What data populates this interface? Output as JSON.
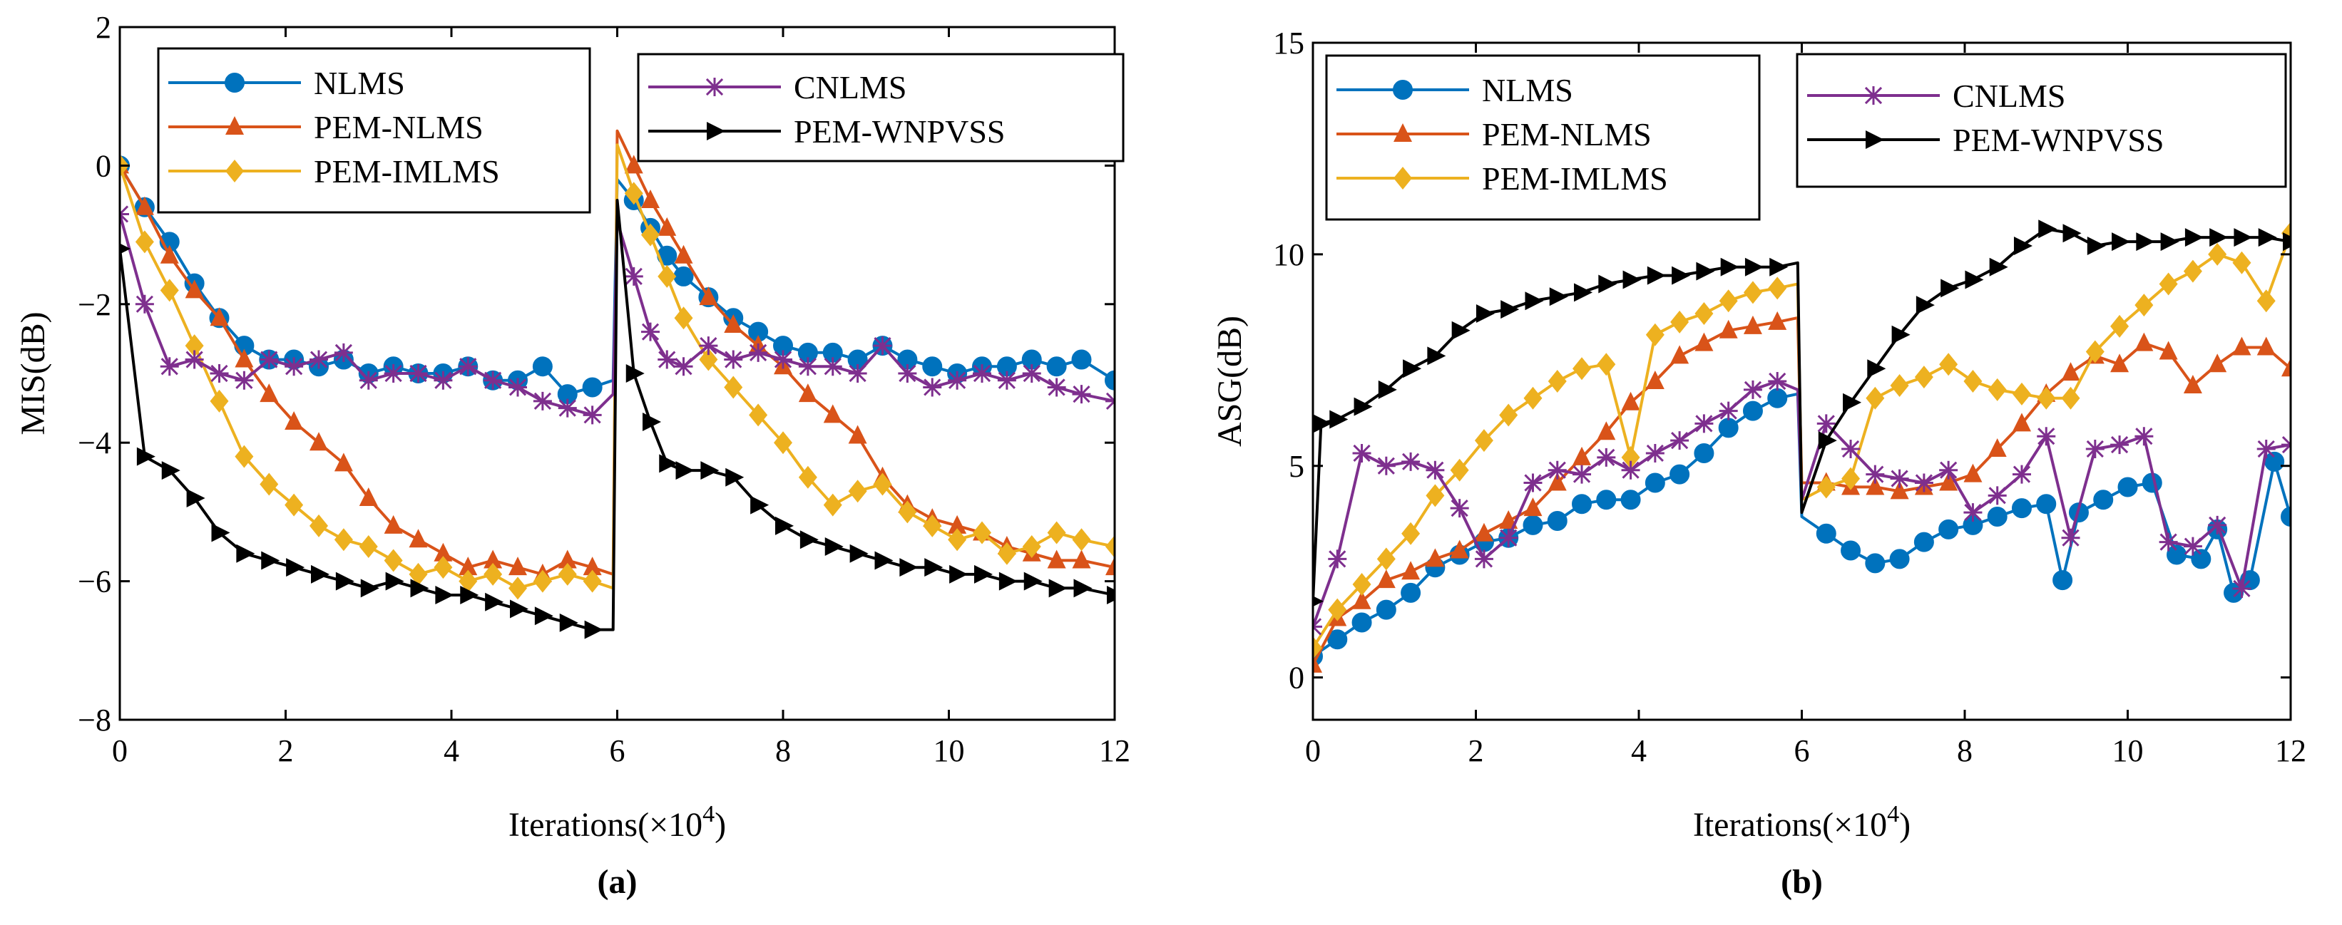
{
  "chart_data": [
    {
      "id": "a",
      "type": "line",
      "panel_label": "(a)",
      "xlabel": "Iterations(×10",
      "xlabel_sup": "4",
      "xlabel_close": ")",
      "ylabel": "MIS(dB)",
      "xlim": [
        0,
        12
      ],
      "ylim": [
        -8,
        2
      ],
      "xticks": [
        0,
        2,
        4,
        6,
        8,
        10,
        12
      ],
      "yticks": [
        2,
        0,
        -2,
        -4,
        -6,
        -8
      ],
      "ytick_labels": [
        "2",
        "0",
        "−2",
        "−4",
        "−6",
        "−8"
      ],
      "legend_groups": [
        [
          "NLMS",
          "PEM-NLMS",
          "PEM-IMLMS"
        ],
        [
          "CNLMS",
          "PEM-WNPVSS"
        ]
      ],
      "series": [
        {
          "name": "NLMS",
          "color": "#0072bd",
          "marker": "circle",
          "x": [
            0,
            0.3,
            0.6,
            0.9,
            1.2,
            1.5,
            1.8,
            2.1,
            2.4,
            2.7,
            3.0,
            3.3,
            3.6,
            3.9,
            4.2,
            4.5,
            4.8,
            5.1,
            5.4,
            5.7,
            5.95,
            6.0,
            6.2,
            6.4,
            6.6,
            6.8,
            7.1,
            7.4,
            7.7,
            8.0,
            8.3,
            8.6,
            8.9,
            9.2,
            9.5,
            9.8,
            10.1,
            10.4,
            10.7,
            11.0,
            11.3,
            11.6,
            12.0
          ],
          "y": [
            0,
            -0.6,
            -1.1,
            -1.7,
            -2.2,
            -2.6,
            -2.8,
            -2.8,
            -2.9,
            -2.8,
            -3.0,
            -2.9,
            -3.0,
            -3.0,
            -2.9,
            -3.1,
            -3.1,
            -2.9,
            -3.3,
            -3.2,
            -3.1,
            -0.2,
            -0.5,
            -0.9,
            -1.3,
            -1.6,
            -1.9,
            -2.2,
            -2.4,
            -2.6,
            -2.7,
            -2.7,
            -2.8,
            -2.6,
            -2.8,
            -2.9,
            -3.0,
            -2.9,
            -2.9,
            -2.8,
            -2.9,
            -2.8,
            -3.1
          ]
        },
        {
          "name": "PEM-NLMS",
          "color": "#d95319",
          "marker": "triangle",
          "x": [
            0,
            0.3,
            0.6,
            0.9,
            1.2,
            1.5,
            1.8,
            2.1,
            2.4,
            2.7,
            3.0,
            3.3,
            3.6,
            3.9,
            4.2,
            4.5,
            4.8,
            5.1,
            5.4,
            5.7,
            5.95,
            6.0,
            6.2,
            6.4,
            6.6,
            6.8,
            7.1,
            7.4,
            7.7,
            8.0,
            8.3,
            8.6,
            8.9,
            9.2,
            9.5,
            9.8,
            10.1,
            10.4,
            10.7,
            11.0,
            11.3,
            11.6,
            12.0
          ],
          "y": [
            0,
            -0.6,
            -1.3,
            -1.8,
            -2.2,
            -2.8,
            -3.3,
            -3.7,
            -4.0,
            -4.3,
            -4.8,
            -5.2,
            -5.4,
            -5.6,
            -5.8,
            -5.7,
            -5.8,
            -5.9,
            -5.7,
            -5.8,
            -5.9,
            0.5,
            0.0,
            -0.5,
            -0.9,
            -1.3,
            -1.9,
            -2.3,
            -2.6,
            -2.9,
            -3.3,
            -3.6,
            -3.9,
            -4.5,
            -4.9,
            -5.1,
            -5.2,
            -5.3,
            -5.5,
            -5.6,
            -5.7,
            -5.7,
            -5.8
          ]
        },
        {
          "name": "PEM-IMLMS",
          "color": "#edb120",
          "marker": "diamond",
          "x": [
            0,
            0.3,
            0.6,
            0.9,
            1.2,
            1.5,
            1.8,
            2.1,
            2.4,
            2.7,
            3.0,
            3.3,
            3.6,
            3.9,
            4.2,
            4.5,
            4.8,
            5.1,
            5.4,
            5.7,
            5.95,
            6.0,
            6.2,
            6.4,
            6.6,
            6.8,
            7.1,
            7.4,
            7.7,
            8.0,
            8.3,
            8.6,
            8.9,
            9.2,
            9.5,
            9.8,
            10.1,
            10.4,
            10.7,
            11.0,
            11.3,
            11.6,
            12.0
          ],
          "y": [
            0,
            -1.1,
            -1.8,
            -2.6,
            -3.4,
            -4.2,
            -4.6,
            -4.9,
            -5.2,
            -5.4,
            -5.5,
            -5.7,
            -5.9,
            -5.8,
            -6.0,
            -5.9,
            -6.1,
            -6.0,
            -5.9,
            -6.0,
            -6.1,
            0.3,
            -0.4,
            -1.0,
            -1.6,
            -2.2,
            -2.8,
            -3.2,
            -3.6,
            -4.0,
            -4.5,
            -4.9,
            -4.7,
            -4.6,
            -5.0,
            -5.2,
            -5.4,
            -5.3,
            -5.6,
            -5.5,
            -5.3,
            -5.4,
            -5.5
          ]
        },
        {
          "name": "CNLMS",
          "color": "#7e2f8e",
          "marker": "asterisk",
          "x": [
            0,
            0.3,
            0.6,
            0.9,
            1.2,
            1.5,
            1.8,
            2.1,
            2.4,
            2.7,
            3.0,
            3.3,
            3.6,
            3.9,
            4.2,
            4.5,
            4.8,
            5.1,
            5.4,
            5.7,
            5.95,
            6.0,
            6.2,
            6.4,
            6.6,
            6.8,
            7.1,
            7.4,
            7.7,
            8.0,
            8.3,
            8.6,
            8.9,
            9.2,
            9.5,
            9.8,
            10.1,
            10.4,
            10.7,
            11.0,
            11.3,
            11.6,
            12.0
          ],
          "y": [
            -0.7,
            -2.0,
            -2.9,
            -2.8,
            -3.0,
            -3.1,
            -2.8,
            -2.9,
            -2.8,
            -2.7,
            -3.1,
            -3.0,
            -3.0,
            -3.1,
            -2.9,
            -3.1,
            -3.2,
            -3.4,
            -3.5,
            -3.6,
            -3.3,
            -0.8,
            -1.6,
            -2.4,
            -2.8,
            -2.9,
            -2.6,
            -2.8,
            -2.7,
            -2.8,
            -2.9,
            -2.9,
            -3.0,
            -2.6,
            -3.0,
            -3.2,
            -3.1,
            -3.0,
            -3.1,
            -3.0,
            -3.2,
            -3.3,
            -3.4
          ]
        },
        {
          "name": "PEM-WNPVSS",
          "color": "#000000",
          "marker": "triangle-right",
          "x": [
            0,
            0.3,
            0.6,
            0.9,
            1.2,
            1.5,
            1.8,
            2.1,
            2.4,
            2.7,
            3.0,
            3.3,
            3.6,
            3.9,
            4.2,
            4.5,
            4.8,
            5.1,
            5.4,
            5.7,
            5.95,
            6.0,
            6.2,
            6.4,
            6.6,
            6.8,
            7.1,
            7.4,
            7.7,
            8.0,
            8.3,
            8.6,
            8.9,
            9.2,
            9.5,
            9.8,
            10.1,
            10.4,
            10.7,
            11.0,
            11.3,
            11.6,
            12.0
          ],
          "y": [
            -1.2,
            -4.2,
            -4.4,
            -4.8,
            -5.3,
            -5.6,
            -5.7,
            -5.8,
            -5.9,
            -6.0,
            -6.1,
            -6.0,
            -6.1,
            -6.2,
            -6.2,
            -6.3,
            -6.4,
            -6.5,
            -6.6,
            -6.7,
            -6.7,
            -0.5,
            -3.0,
            -3.7,
            -4.3,
            -4.4,
            -4.4,
            -4.5,
            -4.9,
            -5.2,
            -5.4,
            -5.5,
            -5.6,
            -5.7,
            -5.8,
            -5.8,
            -5.9,
            -5.9,
            -6.0,
            -6.0,
            -6.1,
            -6.1,
            -6.2
          ]
        }
      ]
    },
    {
      "id": "b",
      "type": "line",
      "panel_label": "(b)",
      "xlabel": "Iterations(×10",
      "xlabel_sup": "4",
      "xlabel_close": ")",
      "ylabel": "ASG(dB)",
      "xlim": [
        0,
        12
      ],
      "ylim": [
        -1,
        15
      ],
      "xticks": [
        0,
        2,
        4,
        6,
        8,
        10,
        12
      ],
      "yticks": [
        0,
        5,
        10,
        15
      ],
      "ytick_labels": [
        "0",
        "5",
        "10",
        "15"
      ],
      "legend_groups": [
        [
          "NLMS",
          "PEM-NLMS",
          "PEM-IMLMS"
        ],
        [
          "CNLMS",
          "PEM-WNPVSS"
        ]
      ],
      "series": [
        {
          "name": "NLMS",
          "color": "#0072bd",
          "marker": "circle",
          "x": [
            0,
            0.3,
            0.6,
            0.9,
            1.2,
            1.5,
            1.8,
            2.1,
            2.4,
            2.7,
            3.0,
            3.3,
            3.6,
            3.9,
            4.2,
            4.5,
            4.8,
            5.1,
            5.4,
            5.7,
            5.95,
            6.0,
            6.3,
            6.6,
            6.9,
            7.2,
            7.5,
            7.8,
            8.1,
            8.4,
            8.7,
            9.0,
            9.2,
            9.4,
            9.7,
            10.0,
            10.3,
            10.6,
            10.9,
            11.1,
            11.3,
            11.5,
            11.8,
            12.0
          ],
          "y": [
            0.5,
            0.9,
            1.3,
            1.6,
            2.0,
            2.6,
            2.9,
            3.2,
            3.3,
            3.6,
            3.7,
            4.1,
            4.2,
            4.2,
            4.6,
            4.8,
            5.3,
            5.9,
            6.3,
            6.6,
            6.7,
            3.8,
            3.4,
            3.0,
            2.7,
            2.8,
            3.2,
            3.5,
            3.6,
            3.8,
            4.0,
            4.1,
            2.3,
            3.9,
            4.2,
            4.5,
            4.6,
            2.9,
            2.8,
            3.5,
            2.0,
            2.3,
            5.1,
            3.8
          ]
        },
        {
          "name": "PEM-NLMS",
          "color": "#d95319",
          "marker": "triangle",
          "x": [
            0,
            0.3,
            0.6,
            0.9,
            1.2,
            1.5,
            1.8,
            2.1,
            2.4,
            2.7,
            3.0,
            3.3,
            3.6,
            3.9,
            4.2,
            4.5,
            4.8,
            5.1,
            5.4,
            5.7,
            5.95,
            6.0,
            6.3,
            6.6,
            6.9,
            7.2,
            7.5,
            7.8,
            8.1,
            8.4,
            8.7,
            9.0,
            9.3,
            9.6,
            9.9,
            10.2,
            10.5,
            10.8,
            11.1,
            11.4,
            11.7,
            12.0
          ],
          "y": [
            0.3,
            1.4,
            1.8,
            2.3,
            2.5,
            2.8,
            3.0,
            3.4,
            3.7,
            4.0,
            4.6,
            5.2,
            5.8,
            6.5,
            7.0,
            7.6,
            7.9,
            8.2,
            8.3,
            8.4,
            8.5,
            4.6,
            4.6,
            4.5,
            4.5,
            4.4,
            4.5,
            4.6,
            4.8,
            5.4,
            6.0,
            6.7,
            7.2,
            7.6,
            7.4,
            7.9,
            7.7,
            6.9,
            7.4,
            7.8,
            7.8,
            7.3
          ]
        },
        {
          "name": "PEM-IMLMS",
          "color": "#edb120",
          "marker": "diamond",
          "x": [
            0,
            0.3,
            0.6,
            0.9,
            1.2,
            1.5,
            1.8,
            2.1,
            2.4,
            2.7,
            3.0,
            3.3,
            3.6,
            3.9,
            4.2,
            4.5,
            4.8,
            5.1,
            5.4,
            5.7,
            5.95,
            6.0,
            6.3,
            6.6,
            6.9,
            7.2,
            7.5,
            7.8,
            8.1,
            8.4,
            8.7,
            9.0,
            9.3,
            9.6,
            9.9,
            10.2,
            10.5,
            10.8,
            11.1,
            11.4,
            11.7,
            12.0
          ],
          "y": [
            0.7,
            1.6,
            2.2,
            2.8,
            3.4,
            4.3,
            4.9,
            5.6,
            6.2,
            6.6,
            7.0,
            7.3,
            7.4,
            5.2,
            8.1,
            8.4,
            8.6,
            8.9,
            9.1,
            9.2,
            9.3,
            4.2,
            4.5,
            4.7,
            6.6,
            6.9,
            7.1,
            7.4,
            7.0,
            6.8,
            6.7,
            6.6,
            6.6,
            7.7,
            8.3,
            8.8,
            9.3,
            9.6,
            10.0,
            9.8,
            8.9,
            10.5
          ]
        },
        {
          "name": "CNLMS",
          "color": "#7e2f8e",
          "marker": "asterisk",
          "x": [
            0,
            0.3,
            0.6,
            0.9,
            1.2,
            1.5,
            1.8,
            2.1,
            2.4,
            2.7,
            3.0,
            3.3,
            3.6,
            3.9,
            4.2,
            4.5,
            4.8,
            5.1,
            5.4,
            5.7,
            5.95,
            6.0,
            6.3,
            6.6,
            6.9,
            7.2,
            7.5,
            7.8,
            8.1,
            8.4,
            8.7,
            9.0,
            9.3,
            9.6,
            9.9,
            10.2,
            10.5,
            10.8,
            11.1,
            11.4,
            11.7,
            12.0
          ],
          "y": [
            1.2,
            2.8,
            5.3,
            5.0,
            5.1,
            4.9,
            4.0,
            2.8,
            3.3,
            4.6,
            4.9,
            4.8,
            5.2,
            4.9,
            5.3,
            5.6,
            6.0,
            6.3,
            6.8,
            7.0,
            6.8,
            4.2,
            6.0,
            5.4,
            4.8,
            4.7,
            4.6,
            4.9,
            3.9,
            4.3,
            4.8,
            5.7,
            3.3,
            5.4,
            5.5,
            5.7,
            3.2,
            3.1,
            3.6,
            2.1,
            5.4,
            5.5
          ]
        },
        {
          "name": "PEM-WNPVSS",
          "color": "#000000",
          "marker": "triangle-right",
          "x": [
            0,
            0.1,
            0.3,
            0.6,
            0.9,
            1.2,
            1.5,
            1.8,
            2.1,
            2.4,
            2.7,
            3.0,
            3.3,
            3.6,
            3.9,
            4.2,
            4.5,
            4.8,
            5.1,
            5.4,
            5.7,
            5.95,
            6.0,
            6.3,
            6.6,
            6.9,
            7.2,
            7.5,
            7.8,
            8.1,
            8.4,
            8.7,
            9.0,
            9.3,
            9.6,
            9.9,
            10.2,
            10.5,
            10.8,
            11.1,
            11.4,
            11.7,
            12.0
          ],
          "y": [
            1.8,
            6.0,
            6.1,
            6.4,
            6.8,
            7.3,
            7.6,
            8.2,
            8.6,
            8.7,
            8.9,
            9.0,
            9.1,
            9.3,
            9.4,
            9.5,
            9.5,
            9.6,
            9.7,
            9.7,
            9.7,
            9.8,
            3.9,
            5.6,
            6.5,
            7.3,
            8.1,
            8.8,
            9.2,
            9.4,
            9.7,
            10.2,
            10.6,
            10.5,
            10.2,
            10.3,
            10.3,
            10.3,
            10.4,
            10.4,
            10.4,
            10.4,
            10.3
          ]
        }
      ]
    }
  ]
}
